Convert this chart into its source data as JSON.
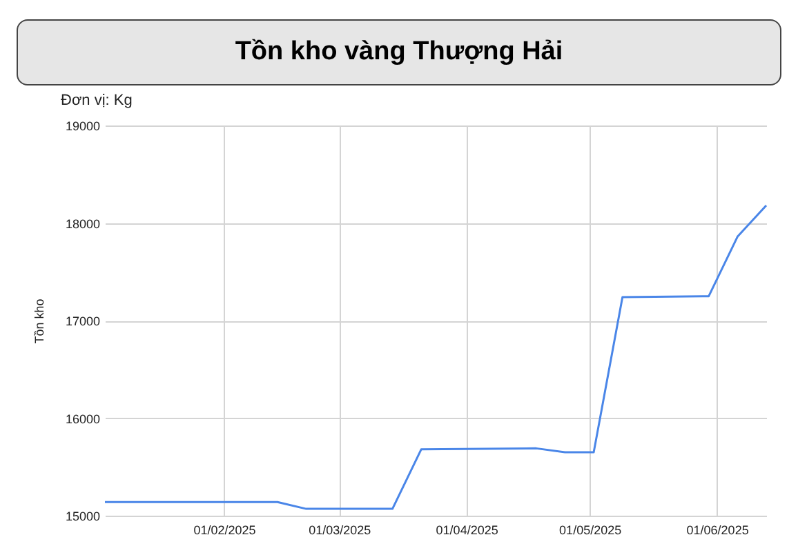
{
  "chart_data": {
    "type": "line",
    "title": "Tồn kho vàng Thượng Hải",
    "ylabel": "Tồn kho",
    "annotations": [
      "Đơn vị: Kg"
    ],
    "x": [
      "2025-01-03",
      "2025-02-14",
      "2025-02-21",
      "2025-03-14",
      "2025-03-21",
      "2025-04-18",
      "2025-04-25",
      "2025-05-02",
      "2025-05-09",
      "2025-05-30",
      "2025-06-06",
      "2025-06-13"
    ],
    "series": [
      {
        "color": "#4a86e8",
        "values": [
          15140,
          15140,
          15070,
          15070,
          15680,
          15690,
          15650,
          15650,
          17240,
          17250,
          17860,
          18180
        ]
      }
    ],
    "xlim": [
      "2025-01-03",
      "2025-06-13"
    ],
    "xticks": [
      {
        "value": "2025-02-01",
        "label": "01/02/2025"
      },
      {
        "value": "2025-03-01",
        "label": "01/03/2025"
      },
      {
        "value": "2025-04-01",
        "label": "01/04/2025"
      },
      {
        "value": "2025-05-01",
        "label": "01/05/2025"
      },
      {
        "value": "2025-06-01",
        "label": "01/06/2025"
      }
    ],
    "ylim": [
      15000,
      19000
    ],
    "yticks": [
      15000,
      16000,
      17000,
      18000,
      19000
    ],
    "grid": true,
    "marker": "none",
    "line_style": "solid"
  }
}
